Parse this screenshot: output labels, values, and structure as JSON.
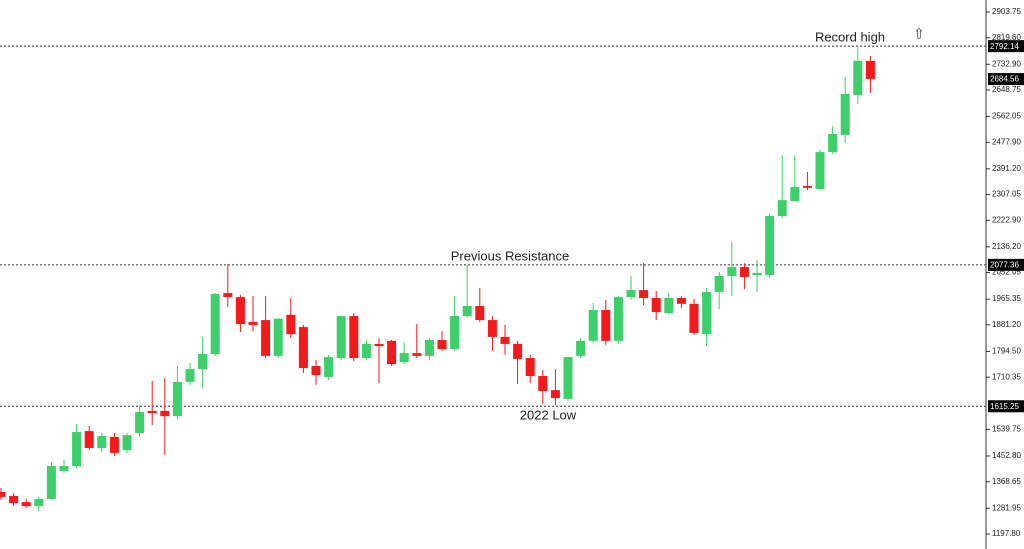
{
  "chart_data": {
    "type": "candlestick",
    "open": [
      1335,
      1322,
      1302,
      1289,
      1312,
      1404,
      1420,
      1534,
      1479,
      1515,
      1472,
      1528,
      1600,
      1600,
      1583,
      1695,
      1737,
      1786,
      1985,
      1972,
      1891,
      1897,
      1780,
      1914,
      1874,
      1747,
      1711,
      1773,
      1910,
      1773,
      1819,
      1829,
      1760,
      1789,
      1780,
      1832,
      1802,
      1910,
      1943,
      1897,
      1842,
      1819,
      1773,
      1714,
      1668,
      1639,
      1780,
      1829,
      1930,
      1829,
      1972,
      1995,
      1969,
      1920,
      1969,
      1950,
      1851,
      1989,
      2041,
      2070,
      2044,
      2044,
      2237,
      2286,
      2335,
      2325,
      2446,
      2502,
      2632,
      2744
    ],
    "high": [
      1348,
      1332,
      1312,
      1319,
      1433,
      1440,
      1557,
      1551,
      1528,
      1528,
      1528,
      1619,
      1698,
      1708,
      1747,
      1757,
      1842,
      1985,
      2080,
      1979,
      1976,
      1976,
      1904,
      1969,
      1881,
      1767,
      1783,
      1910,
      1920,
      1832,
      1838,
      1832,
      1825,
      1884,
      1838,
      1861,
      1976,
      2077,
      2002,
      1910,
      1881,
      1829,
      1783,
      1734,
      1737,
      1776,
      1838,
      1953,
      1963,
      1976,
      2041,
      2083,
      1992,
      1985,
      1976,
      1966,
      2002,
      2054,
      2152,
      2083,
      2093,
      2244,
      2436,
      2436,
      2381,
      2453,
      2531,
      2691,
      2793,
      2760
    ],
    "low": [
      1309,
      1289,
      1283,
      1273,
      1309,
      1397,
      1414,
      1472,
      1466,
      1453,
      1463,
      1515,
      1554,
      1456,
      1574,
      1685,
      1675,
      1780,
      1940,
      1858,
      1861,
      1773,
      1773,
      1838,
      1724,
      1685,
      1701,
      1767,
      1763,
      1767,
      1691,
      1747,
      1753,
      1773,
      1767,
      1796,
      1796,
      1904,
      1891,
      1796,
      1783,
      1688,
      1691,
      1623,
      1619,
      1632,
      1773,
      1822,
      1816,
      1819,
      1963,
      1946,
      1897,
      1914,
      1936,
      1848,
      1812,
      1933,
      1976,
      1998,
      1989,
      2034,
      2231,
      2283,
      2322,
      2322,
      2440,
      2476,
      2603,
      2639
    ],
    "close": [
      1319,
      1299,
      1289,
      1312,
      1420,
      1420,
      1531,
      1479,
      1518,
      1463,
      1521,
      1597,
      1593,
      1583,
      1695,
      1737,
      1786,
      1982,
      1972,
      1884,
      1881,
      1780,
      1901,
      1851,
      1740,
      1717,
      1776,
      1910,
      1773,
      1819,
      1812,
      1753,
      1789,
      1780,
      1832,
      1802,
      1910,
      1943,
      1897,
      1842,
      1819,
      1770,
      1714,
      1665,
      1642,
      1776,
      1829,
      1930,
      1829,
      1972,
      1995,
      1969,
      1923,
      1969,
      1950,
      1855,
      1989,
      2041,
      2070,
      2038,
      2051,
      2237,
      2289,
      2332,
      2329,
      2446,
      2505,
      2636,
      2744,
      2685
    ],
    "up_color": "#3ccf6a",
    "down_color": "#f21a1a",
    "ylim": [
      1197.8,
      2903.75
    ],
    "yticks": [
      {
        "value": 1197.8,
        "label": "1197.80"
      },
      1281.95,
      1368.65,
      {
        "value": 1452.8,
        "label": "1452.80"
      },
      1539.75,
      1710.35,
      {
        "value": 1794.5,
        "label": "1794.50"
      },
      {
        "value": 1881.2,
        "label": "1881.20"
      },
      1965.35,
      2052.05,
      {
        "value": 2136.2,
        "label": "2136.20"
      },
      {
        "value": 2222.9,
        "label": "2222.90"
      },
      2307.05,
      {
        "value": 2391.2,
        "label": "2391.20"
      },
      {
        "value": 2477.9,
        "label": "2477.90"
      },
      2562.05,
      2648.75,
      {
        "value": 2732.9,
        "label": "2732.90"
      },
      {
        "value": 2819.6,
        "label": "2819.60"
      },
      2903.75
    ],
    "levels": [
      2792.14,
      2077.36,
      1615.25
    ],
    "price_label": 2684.56,
    "annotations": [
      "Record high",
      "Previous Resistance",
      "2022 Low"
    ]
  }
}
